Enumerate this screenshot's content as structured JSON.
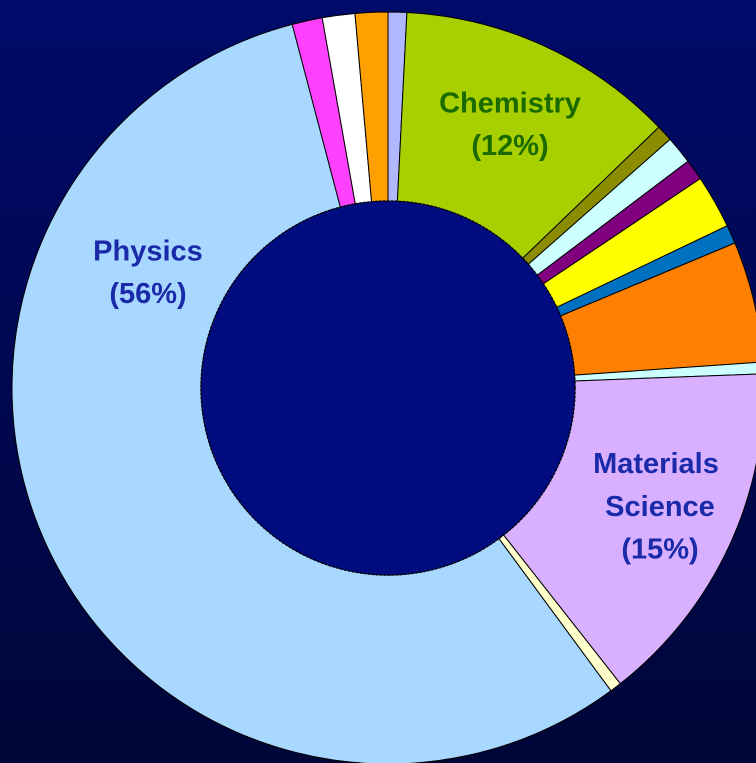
{
  "chart_data": {
    "type": "donut",
    "categories": [
      null,
      "Chemistry",
      null,
      null,
      null,
      null,
      null,
      null,
      null,
      "Materials Science",
      null,
      "Physics",
      null,
      null,
      null
    ],
    "values": [
      0.8,
      12,
      0.7,
      1.2,
      0.9,
      2.3,
      0.8,
      5.2,
      0.5,
      15,
      0.5,
      56,
      1.3,
      1.4,
      1.4
    ],
    "value_labels": [
      null,
      "(12%)",
      null,
      null,
      null,
      null,
      null,
      null,
      null,
      "(15%)",
      null,
      "(56%)",
      null,
      null,
      null
    ],
    "colors": [
      "#b0b8ff",
      "#a8d000",
      "#8c8c00",
      "#ccffff",
      "#800080",
      "#ffff00",
      "#0070c0",
      "#ff8000",
      "#ccffff",
      "#d8b0ff",
      "#ffffcc",
      "#a8d8ff",
      "#ff40ff",
      "#ffffff",
      "#ffa000"
    ],
    "label_colors": [
      null,
      "#1a6a00",
      null,
      null,
      null,
      null,
      null,
      null,
      null,
      "#1a2aa8",
      null,
      "#1a2aa8",
      null,
      null,
      null
    ]
  }
}
